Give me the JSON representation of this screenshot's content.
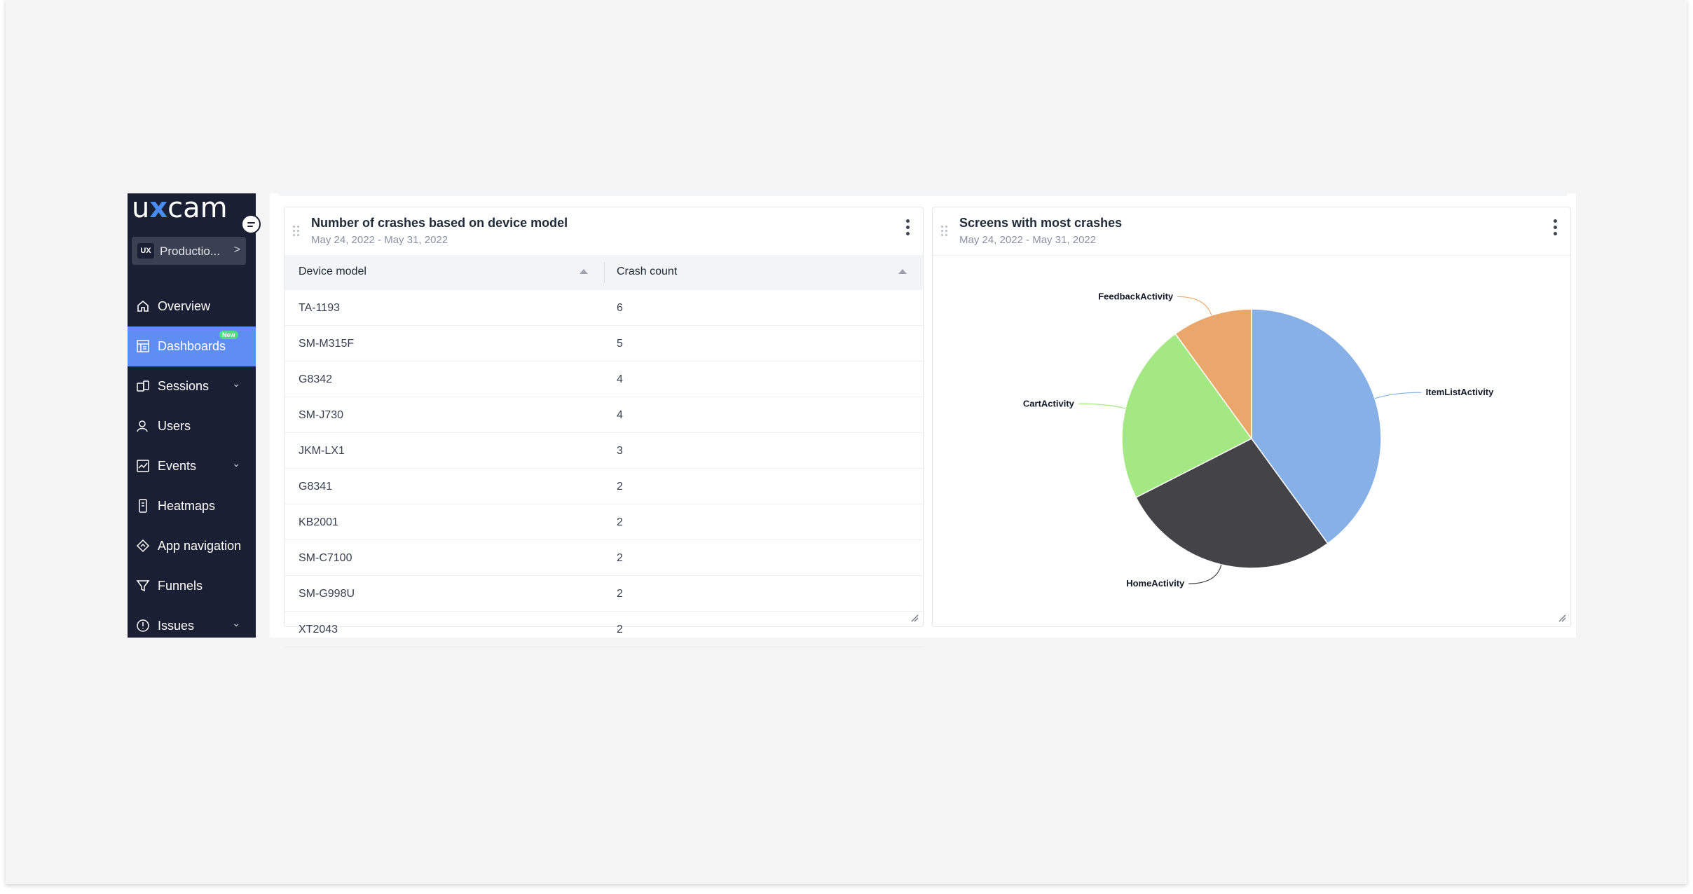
{
  "sidebar": {
    "logo": {
      "pre": "u",
      "x": "x",
      "post": "cam"
    },
    "project": {
      "badge": "UX",
      "name": "Productio...",
      "chevron": ">"
    },
    "items": [
      {
        "label": "Overview",
        "icon": "home-icon"
      },
      {
        "label": "Dashboards",
        "icon": "dashboard-icon",
        "badge": "New",
        "active": true
      },
      {
        "label": "Sessions",
        "icon": "sessions-icon",
        "expandable": true
      },
      {
        "label": "Users",
        "icon": "users-icon"
      },
      {
        "label": "Events",
        "icon": "events-icon",
        "expandable": true
      },
      {
        "label": "Heatmaps",
        "icon": "heatmaps-icon"
      },
      {
        "label": "App navigation",
        "icon": "app-navigation-icon"
      },
      {
        "label": "Funnels",
        "icon": "funnel-icon"
      },
      {
        "label": "Issues",
        "icon": "issues-icon",
        "expandable": true
      }
    ]
  },
  "colors": {
    "sidebar_bg": "#1b1f33",
    "active_item": "#5e8ef3",
    "new_badge": "#4ade80"
  },
  "crash_table_card": {
    "title": "Number of crashes based on device model",
    "date_range": "May 24, 2022 - May 31, 2022",
    "columns": [
      "Device model",
      "Crash count"
    ],
    "rows": [
      [
        "TA-1193",
        "6"
      ],
      [
        "SM-M315F",
        "5"
      ],
      [
        "G8342",
        "4"
      ],
      [
        "SM-J730",
        "4"
      ],
      [
        "JKM-LX1",
        "3"
      ],
      [
        "G8341",
        "2"
      ],
      [
        "KB2001",
        "2"
      ],
      [
        "SM-C7100",
        "2"
      ],
      [
        "SM-G998U",
        "2"
      ],
      [
        "XT2043",
        "2"
      ]
    ]
  },
  "screens_card": {
    "title": "Screens with most crashes",
    "date_range": "May 24, 2022 - May 31, 2022"
  },
  "chart_data": {
    "type": "pie",
    "title": "Screens with most crashes",
    "slices": [
      {
        "label": "ItemListActivity",
        "value": 40,
        "color": "#86b0e6"
      },
      {
        "label": "HomeActivity",
        "value": 27.5,
        "color": "#434348"
      },
      {
        "label": "CartActivity",
        "value": 22.5,
        "color": "#a4e884"
      },
      {
        "label": "FeedbackActivity",
        "value": 10,
        "color": "#eba66b"
      }
    ]
  }
}
